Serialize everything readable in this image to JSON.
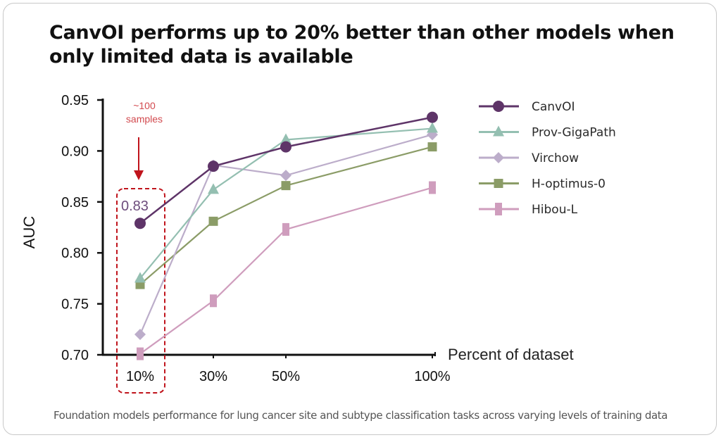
{
  "title": "CanvOI performs up to 20% better than other models when only limited data is available",
  "caption": "Foundation models performance for lung cancer site and subtype classification tasks across varying levels of training data",
  "annotation": {
    "samples_line1": "~100",
    "samples_line2": "samples",
    "highlight_value": "0.83",
    "color": "#c0141c"
  },
  "chart_data": {
    "type": "line",
    "title": "CanvOI performs up to 20% better than other models when only limited data is available",
    "xlabel": "Percent of dataset",
    "ylabel": "AUC",
    "categories": [
      "10%",
      "30%",
      "50%",
      "100%"
    ],
    "x": [
      10,
      30,
      50,
      100
    ],
    "ylim": [
      0.7,
      0.95
    ],
    "yticks": [
      "0.70",
      "0.75",
      "0.80",
      "0.85",
      "0.90",
      "0.95"
    ],
    "ytick_values": [
      0.7,
      0.75,
      0.8,
      0.85,
      0.9,
      0.95
    ],
    "grid": false,
    "legend_position": "top-right",
    "series": [
      {
        "name": "CanvOI",
        "marker": "circle",
        "color": "#5e3468",
        "values": [
          0.829,
          0.885,
          0.904,
          0.933
        ]
      },
      {
        "name": "Prov-GigaPath",
        "marker": "triangle",
        "color": "#94bfb1",
        "values": [
          0.775,
          0.862,
          0.911,
          0.922
        ]
      },
      {
        "name": "Virchow",
        "marker": "diamond",
        "color": "#bcadca",
        "values": [
          0.72,
          0.886,
          0.876,
          0.916
        ]
      },
      {
        "name": "H-optimus-0",
        "marker": "square",
        "color": "#8b9c67",
        "values": [
          0.769,
          0.831,
          0.866,
          0.904
        ]
      },
      {
        "name": "Hibou-L",
        "marker": "rect",
        "color": "#cf9dbd",
        "values": [
          0.701,
          0.753,
          0.823,
          0.864
        ]
      }
    ]
  }
}
